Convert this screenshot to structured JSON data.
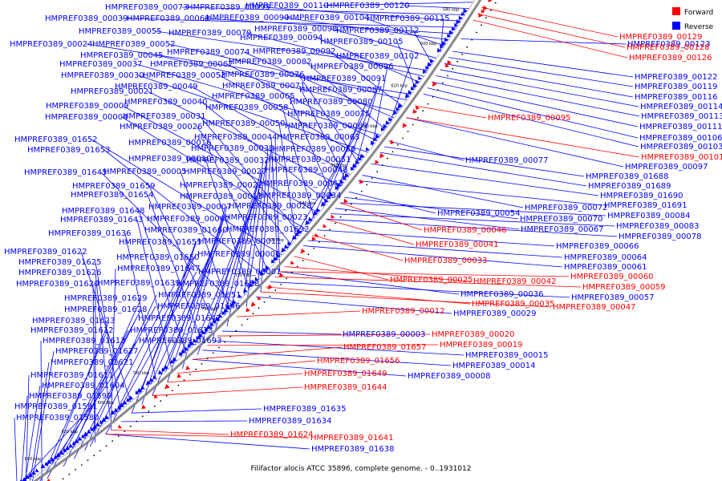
{
  "caption": "Filifactor alocis ATCC 35896, complete genome. - 0..1931012",
  "legend": [
    {
      "name": "Forward",
      "color": "#ff0000"
    },
    {
      "name": "Reverse",
      "color": "#0000ff"
    }
  ],
  "ticks": [
    "580 kbp",
    "600 kbp",
    "620 kbp",
    "640 kbp",
    "660 kbp",
    "680 kbp",
    "700 kbp",
    "720 kbp",
    "740 kbp",
    "760 kbp",
    "780 kbp",
    "800 kbp",
    "820 kbp",
    "840 kbp"
  ],
  "reverse_labels": [
    "HMPREF0389_00110",
    "HMPREF0389_00120",
    "HMPREF0389_00073",
    "HMPREF0389_00093",
    "HMPREF0389_00039",
    "HMPREF0389_00068",
    "HMPREF0389_00090",
    "HMPREF0389_00104",
    "HMPREF0389_00115",
    "HMPREF0389_00098",
    "HMPREF0389_00112",
    "HMPREF0389_00055",
    "HMPREF0389_00079",
    "HMPREF0389_00094",
    "HMPREF0389_00105",
    "HMPREF0389_00024",
    "HMPREF0389_00052",
    "HMPREF0389_00092",
    "HMPREF0389_00045",
    "HMPREF0389_00074",
    "HMPREF0389_00102",
    "HMPREF0389_00082",
    "HMPREF0389_00037",
    "HMPREF0389_00062",
    "HMPREF0389_00096",
    "HMPREF0389_00030",
    "HMPREF0389_00053",
    "HMPREF0389_00076",
    "HMPREF0389_00091",
    "HMPREF0389_00049",
    "HMPREF0389_00071",
    "HMPREF0389_00021",
    "HMPREF0389_00087",
    "HMPREF0389_00065",
    "HMPREF0389_00040",
    "HMPREF0389_00080",
    "HMPREF0389_00009",
    "HMPREF0389_00058",
    "HMPREF0389_00075",
    "HMPREF0389_00004",
    "HMPREF0389_00031",
    "HMPREF0389_00050",
    "HMPREF0389_00026",
    "HMPREF0389_00069",
    "HMPREF0389_01652",
    "HMPREF0389_00044",
    "HMPREF0389_00063",
    "HMPREF0389_00016",
    "HMPREF0389_01653",
    "HMPREF0389_00038",
    "HMPREF0389_00056",
    "HMPREF0389_00010",
    "HMPREF0389_00032",
    "HMPREF0389_00051",
    "HMPREF0389_01645",
    "HMPREF0389_00005",
    "HMPREF0389_00027",
    "HMPREF0389_00048",
    "HMPREF0389_01659",
    "HMPREF0389_00022",
    "HMPREF0389_00043",
    "HMPREF0389_01654",
    "HMPREF0389_00013",
    "HMPREF0389_00034",
    "HMPREF0389_01648",
    "HMPREF0389_00007",
    "HMPREF0389_00028",
    "HMPREF0389_01643",
    "HMPREF0389_00002",
    "HMPREF0389_00023",
    "HMPREF0389_01636",
    "HMPREF0389_01660",
    "HMPREF0389_01692",
    "HMPREF0389_01655",
    "HMPREF0389_00011",
    "HMPREF0389_01622",
    "HMPREF0389_00006",
    "HMPREF0389_01625",
    "HMPREF0389_01650",
    "HMPREF0389_01626",
    "HMPREF0389_01647",
    "HMPREF0389_00001",
    "HMPREF0389_01620",
    "HMPREF0389_01639",
    "HMPREF0389_01658",
    "HMPREF0389_01651",
    "HMPREF0389_01629",
    "HMPREF0389_01646",
    "HMPREF0389_01628",
    "HMPREF0389_01642",
    "HMPREF0389_01623",
    "HMPREF0389_01612",
    "HMPREF0389_01633",
    "HMPREF0389_01613",
    "HMPREF0389_01693",
    "HMPREF0389_01627",
    "HMPREF0389_01621",
    "HMPREF0389_01611",
    "HMPREF0389_01604",
    "HMPREF0389_01599",
    "HMPREF0389_01591",
    "HMPREF0389_01580",
    "HMPREF0389_00123",
    "HMPREF0389_00122",
    "HMPREF0389_00119",
    "HMPREF0389_00116",
    "HMPREF0389_00114",
    "HMPREF0389_00113",
    "HMPREF0389_00111",
    "HMPREF0389_00106",
    "HMPREF0389_00103",
    "HMPREF0389_00097",
    "HMPREF0389_00077",
    "HMPREF0389_01688",
    "HMPREF0389_01689",
    "HMPREF0389_01690",
    "HMPREF0389_00072",
    "HMPREF0389_01691",
    "HMPREF0389_00054",
    "HMPREF0389_00070",
    "HMPREF0389_00084",
    "HMPREF0389_00067",
    "HMPREF0389_00083",
    "HMPREF0389_00078",
    "HMPREF0389_00066",
    "HMPREF0389_00064",
    "HMPREF0389_00061",
    "HMPREF0389_00036",
    "HMPREF0389_00057",
    "HMPREF0389_00029",
    "HMPREF0389_00003",
    "HMPREF0389_00015",
    "HMPREF0389_00014",
    "HMPREF0389_00008",
    "HMPREF0389_01635",
    "HMPREF0389_01634",
    "HMPREF0389_01638"
  ],
  "forward_labels": [
    "HMPREF0389_00129",
    "HMPREF0389_00128",
    "HMPREF0389_00126",
    "HMPREF0389_00095",
    "HMPREF0389_00101",
    "HMPREF0389_00046",
    "HMPREF0389_00041",
    "HMPREF0389_00033",
    "HMPREF0389_00025",
    "HMPREF0389_00042",
    "HMPREF0389_00060",
    "HMPREF0389_00059",
    "HMPREF0389_00035",
    "HMPREF0389_00047",
    "HMPREF0389_00012",
    "HMPREF0389_00020",
    "HMPREF0389_00019",
    "HMPREF0389_01657",
    "HMPREF0389_01656",
    "HMPREF0389_01649",
    "HMPREF0389_01644",
    "HMPREF0389_01624",
    "HMPREF0389_01641"
  ]
}
